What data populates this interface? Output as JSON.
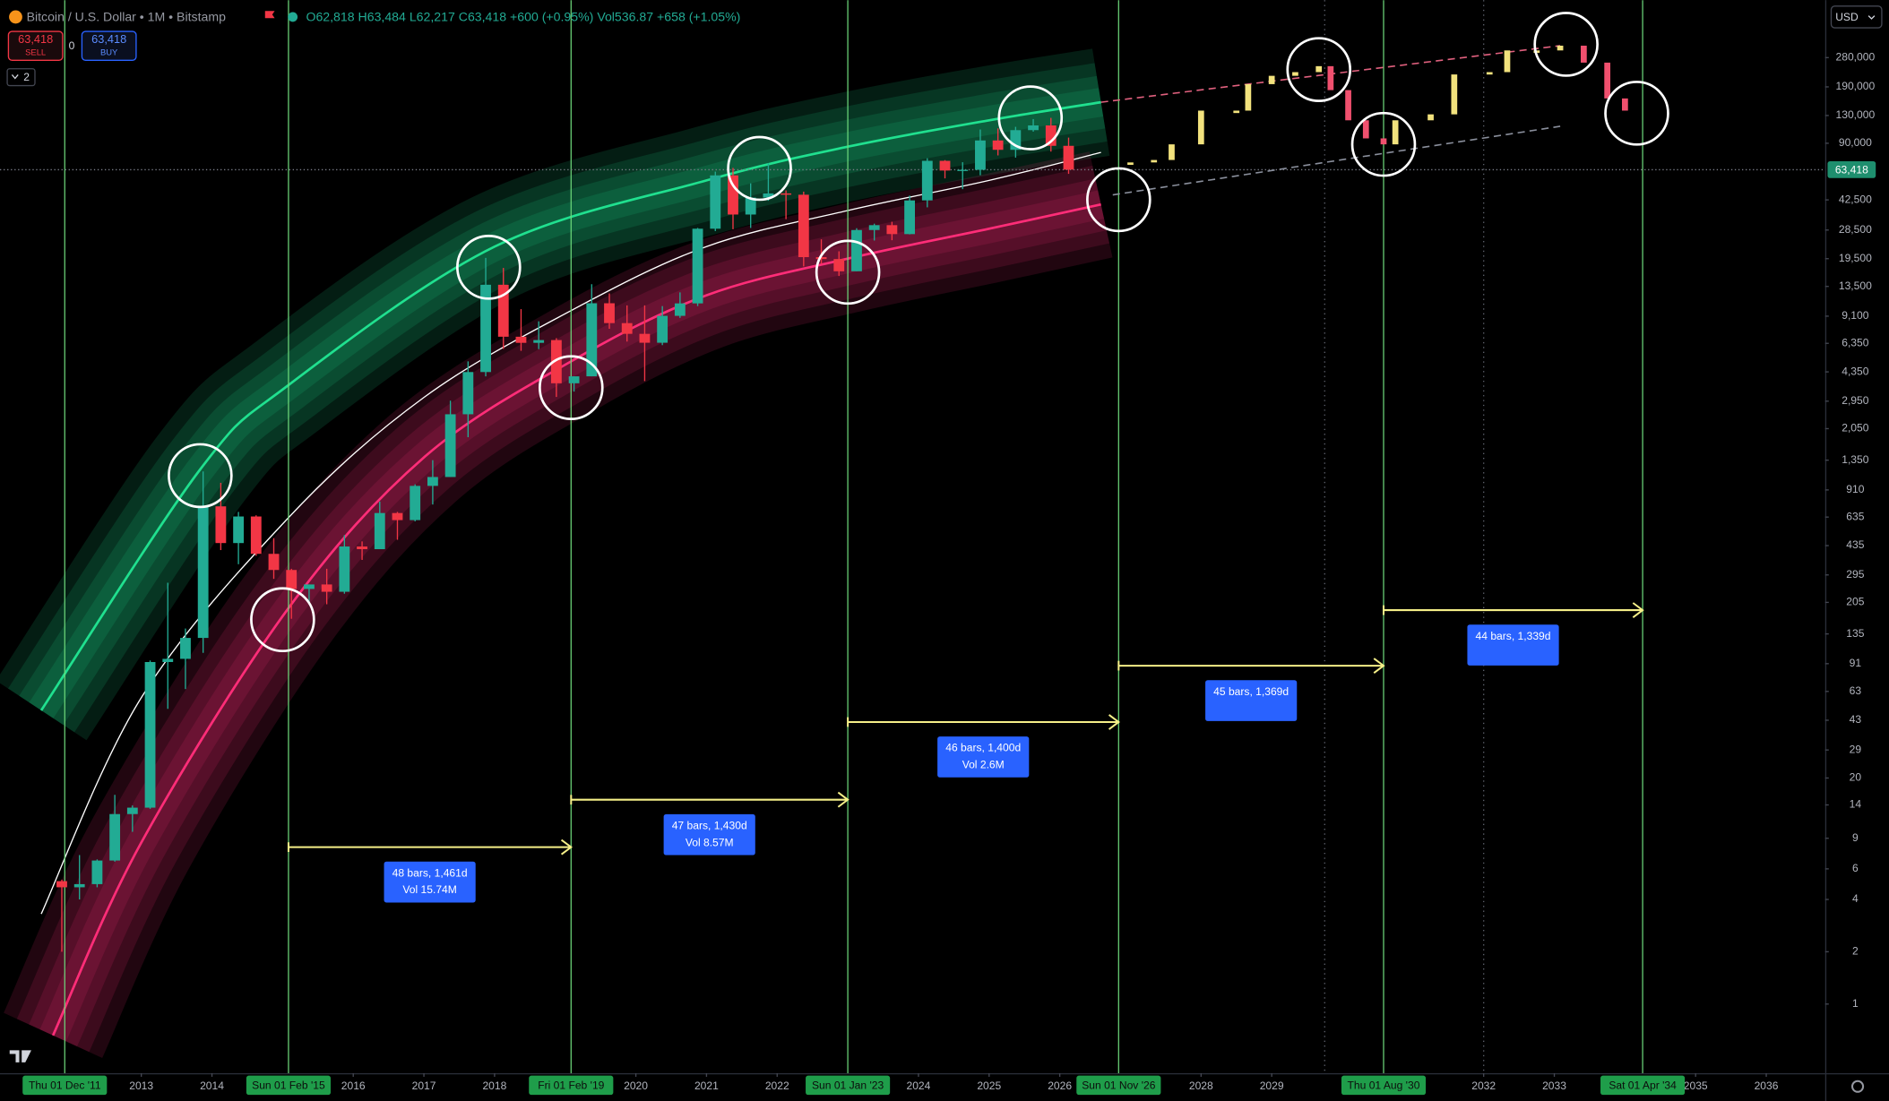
{
  "header": {
    "symbol": "Bitcoin / U.S. Dollar • 1M • Bitstamp",
    "ohlc": [
      "O62,818",
      "H63,484",
      "L62,217",
      "C63,418",
      "+600 (+0.95%)"
    ],
    "volume": [
      "Vol536.87",
      "+658 (+1.05%)"
    ],
    "sell_price": "63,418",
    "sell": "SELL",
    "spread": "0",
    "buy_price": "63,418",
    "buy": "BUY",
    "indicators": "2",
    "currency": "USD"
  },
  "chart_data": {
    "type": "candlestick",
    "x": [
      "2011-10",
      "2012-01",
      "2012-04",
      "2012-07",
      "2012-10",
      "2013-01",
      "2013-04",
      "2013-07",
      "2013-10",
      "2014-01",
      "2014-04",
      "2014-07",
      "2014-10",
      "2015-01",
      "2015-04",
      "2015-07",
      "2015-10",
      "2016-01",
      "2016-04",
      "2016-07",
      "2016-10",
      "2017-01",
      "2017-04",
      "2017-07",
      "2017-10",
      "2018-01",
      "2018-04",
      "2018-07",
      "2018-10",
      "2019-01",
      "2019-04",
      "2019-07",
      "2019-10",
      "2020-01",
      "2020-04",
      "2020-07",
      "2020-10",
      "2021-01",
      "2021-04",
      "2021-07",
      "2021-10",
      "2022-01",
      "2022-04",
      "2022-07",
      "2022-10",
      "2023-01",
      "2023-04",
      "2023-07",
      "2023-10",
      "2024-01",
      "2024-04",
      "2024-07",
      "2024-10",
      "2025-01",
      "2025-04",
      "2025-07",
      "2025-10",
      "2026-01"
    ],
    "open": [
      5.1,
      4.7,
      4.9,
      6.7,
      12.4,
      13.5,
      93,
      97,
      128,
      732,
      450,
      640,
      390,
      315,
      245,
      260,
      236,
      430,
      415,
      670,
      610,
      960,
      1080,
      2480,
      4340,
      13800,
      6930,
      6390,
      6630,
      3740,
      4100,
      10800,
      8300,
      7200,
      6400,
      9140,
      10780,
      29000,
      58800,
      35000,
      43800,
      46300,
      45500,
      19900,
      19400,
      16500,
      28500,
      30400,
      27000,
      42200,
      71300,
      62700,
      63300,
      93400,
      82500,
      107100,
      114000,
      87000
    ],
    "high": [
      5.2,
      7.2,
      6.8,
      16,
      13.9,
      95,
      266,
      145,
      1163,
      1000,
      680,
      650,
      480,
      320,
      260,
      320,
      500,
      460,
      780,
      680,
      980,
      1350,
      2970,
      5000,
      19700,
      17250,
      9990,
      8500,
      6800,
      4100,
      13900,
      12300,
      10500,
      10500,
      10400,
      12470,
      29300,
      61800,
      64900,
      52900,
      69000,
      48200,
      47400,
      25200,
      21500,
      29200,
      31000,
      31800,
      45000,
      73800,
      72000,
      70000,
      108000,
      109600,
      111900,
      124000,
      126000,
      97000
    ],
    "low": [
      2.0,
      4.0,
      4.7,
      6.6,
      9.8,
      13.3,
      50,
      65,
      105,
      410,
      340,
      380,
      280,
      165,
      205,
      200,
      230,
      360,
      415,
      470,
      600,
      750,
      1080,
      1830,
      4100,
      5900,
      5750,
      5880,
      3120,
      3350,
      4100,
      7700,
      6500,
      3850,
      6200,
      8900,
      10400,
      28100,
      28800,
      29300,
      42000,
      32900,
      17600,
      18200,
      15500,
      16500,
      24800,
      24900,
      26900,
      38500,
      56500,
      49000,
      58900,
      76600,
      74400,
      105000,
      80600,
      60000
    ],
    "close": [
      4.7,
      4.9,
      6.7,
      12.4,
      13.5,
      93,
      97,
      128,
      732,
      450,
      640,
      390,
      315,
      245,
      260,
      236,
      430,
      415,
      670,
      610,
      960,
      1080,
      2480,
      4340,
      13800,
      6930,
      6390,
      6630,
      3740,
      4100,
      10800,
      8300,
      7200,
      6400,
      9140,
      10780,
      29000,
      58800,
      35000,
      43800,
      46300,
      45500,
      19900,
      19400,
      16500,
      28500,
      30400,
      27000,
      42200,
      71300,
      62700,
      63300,
      93400,
      82500,
      107100,
      114000,
      87000,
      63418
    ],
    "up_color": "#22ab94",
    "down_color": "#f23645",
    "log_scale": true,
    "ylim": [
      0.4,
      600000
    ],
    "yticks": [
      {
        "value": 280000,
        "label": "280,000"
      },
      {
        "value": 190000,
        "label": "190,000"
      },
      {
        "value": 130000,
        "label": "130,000"
      },
      {
        "value": 90000,
        "label": "90,000"
      },
      {
        "value": 42500,
        "label": "42,500"
      },
      {
        "value": 28500,
        "label": "28,500"
      },
      {
        "value": 19500,
        "label": "19,500"
      },
      {
        "value": 13500,
        "label": "13,500"
      },
      {
        "value": 9100,
        "label": "9,100"
      },
      {
        "value": 6350,
        "label": "6,350"
      },
      {
        "value": 4350,
        "label": "4,350"
      },
      {
        "value": 2950,
        "label": "2,950"
      },
      {
        "value": 2050,
        "label": "2,050"
      },
      {
        "value": 1350,
        "label": "1,350"
      },
      910,
      635,
      435,
      295,
      205,
      135,
      91,
      63,
      43,
      29,
      20,
      14,
      9,
      6,
      4,
      2,
      1
    ],
    "xlim": [
      "2011-01",
      "2036-11"
    ],
    "xticks": [
      {
        "value": "2013-01",
        "label": "2013"
      },
      {
        "value": "2014-01",
        "label": "2014"
      },
      {
        "value": "2016-01",
        "label": "2016"
      },
      {
        "value": "2017-01",
        "label": "2017"
      },
      {
        "value": "2018-01",
        "label": "2018"
      },
      {
        "value": "2020-01",
        "label": "2020"
      },
      {
        "value": "2021-01",
        "label": "2021"
      },
      {
        "value": "2022-01",
        "label": "2022"
      },
      {
        "value": "2024-01",
        "label": "2024"
      },
      {
        "value": "2025-01",
        "label": "2025"
      },
      {
        "value": "2026-01",
        "label": "2026"
      },
      {
        "value": "2028-01",
        "label": "2028"
      },
      {
        "value": "2029-01",
        "label": "2029"
      },
      {
        "value": "2032-01",
        "label": "2032"
      },
      {
        "value": "2033-01",
        "label": "2033"
      },
      {
        "value": "2035-01",
        "label": "2035"
      },
      {
        "value": "2036-01",
        "label": "2036"
      }
    ],
    "last_price": {
      "value": 63418,
      "label": "63,418"
    },
    "last_price_color": "#1e8f6e",
    "upper_band": {
      "x": [
        "2011-08",
        "2013-11",
        "2015-02",
        "2018-01",
        "2021-01",
        "2023-01",
        "2025-01",
        "2026-08"
      ],
      "values": [
        49,
        1194,
        3650,
        22860,
        55000,
        86000,
        122000,
        155000
      ],
      "color": "#20e08f"
    },
    "lower_band": {
      "x": [
        "2011-10",
        "2013-01",
        "2015-02",
        "2017-01",
        "2019-02",
        "2021-01",
        "2023-01",
        "2025-01",
        "2026-08"
      ],
      "values": [
        0.66,
        8.5,
        190,
        1400,
        5000,
        12000,
        19500,
        29000,
        40000
      ],
      "color": "#ff2d78"
    },
    "fair_line": {
      "x": [
        "2011-08",
        "2013-01",
        "2015-02",
        "2017-01",
        "2019-02",
        "2021-01",
        "2023-01",
        "2025-01",
        "2026-08"
      ],
      "values": [
        3.3,
        58,
        630,
        3100,
        9800,
        22900,
        36900,
        55000,
        79700
      ],
      "color": "#ffffff"
    },
    "projection": {
      "x": [
        "2027-01",
        "2027-05",
        "2027-08",
        "2028-01",
        "2028-07",
        "2028-09",
        "2029-01",
        "2029-05",
        "2029-09",
        "2029-11",
        "2030-02",
        "2030-05",
        "2030-08",
        "2030-10",
        "2031-04",
        "2031-08",
        "2032-02",
        "2032-05",
        "2032-10",
        "2033-02",
        "2033-06",
        "2033-10",
        "2034-01"
      ],
      "values": [
        69800,
        72100,
        88700,
        138700,
        138700,
        197000,
        220000,
        231000,
        250000,
        182000,
        122000,
        96000,
        88700,
        122000,
        132000,
        224000,
        231000,
        308000,
        308000,
        328000,
        262000,
        163000,
        138700
      ],
      "up_color": "#f2e27d",
      "down_color": "#f0506e"
    },
    "trendlines": [
      {
        "x": [
          "2026-08",
          "2033-02"
        ],
        "values": [
          155000,
          328000
        ],
        "color": "#e0607e"
      },
      {
        "x": [
          "2026-10",
          "2033-02"
        ],
        "values": [
          45400,
          112700
        ],
        "color": "#8a8f9c"
      }
    ],
    "cycle_lines": {
      "color": "#6fdc7c",
      "ticks": [
        {
          "value": "2011-12",
          "label": "Thu 01 Dec '11"
        },
        {
          "value": "2015-02",
          "label": "Sun 01 Feb '15"
        },
        {
          "value": "2019-02",
          "label": "Fri 01 Feb '19"
        },
        {
          "value": "2023-01",
          "label": "Sun 01 Jan '23"
        },
        {
          "value": "2026-11",
          "label": "Sun 01 Nov '26"
        },
        {
          "value": "2030-08",
          "label": "Thu 01 Aug '30"
        },
        {
          "value": "2034-04",
          "label": "Sat 01 Apr '34"
        }
      ]
    },
    "dotted_lines": [
      "2029-10",
      "2032-01"
    ],
    "circles": {
      "x": [
        "2013-11",
        "2015-01",
        "2017-12",
        "2019-02",
        "2021-10",
        "2023-01",
        "2025-08",
        "2026-11",
        "2029-09",
        "2030-08",
        "2033-03",
        "2034-03"
      ],
      "values": [
        1100,
        163,
        17400,
        3530,
        64500,
        16300,
        126000,
        42600,
        239000,
        88700,
        334000,
        134000
      ],
      "color": "#ffffff"
    },
    "measure_color": "#f5ef88",
    "box_color": "#2962ff",
    "measures": [
      {
        "x": [
          "2015-02",
          "2019-02"
        ],
        "value": 8,
        "text": "48 bars, 1,461d",
        "volume": "Vol 15.74M"
      },
      {
        "x": [
          "2019-02",
          "2023-01"
        ],
        "value": 15,
        "text": "47 bars, 1,430d",
        "volume": "Vol 8.57M"
      },
      {
        "x": [
          "2023-01",
          "2026-11"
        ],
        "value": 42,
        "text": "46 bars, 1,400d",
        "volume": "Vol 2.6M"
      },
      {
        "x": [
          "2026-11",
          "2030-08"
        ],
        "value": 88.6,
        "text": "45 bars, 1,369d"
      },
      {
        "x": [
          "2030-08",
          "2034-04"
        ],
        "value": 185,
        "text": "44 bars, 1,339d"
      }
    ]
  }
}
